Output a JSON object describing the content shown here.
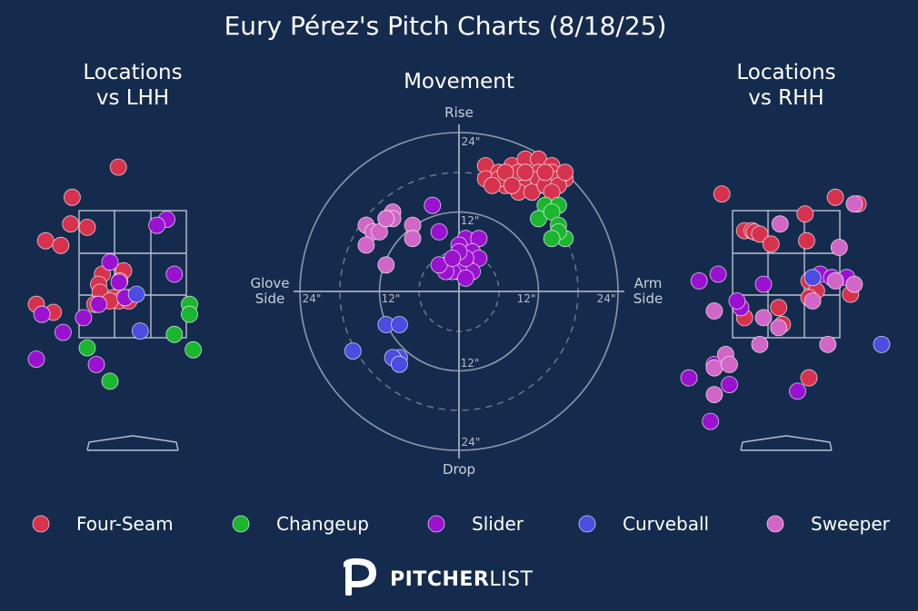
{
  "title": "Eury Pérez's Pitch Charts (8/18/25)",
  "panels": {
    "lhh_title": [
      "Locations",
      "vs LHH"
    ],
    "movement_title": "Movement",
    "rhh_title": [
      "Locations",
      "vs RHH"
    ]
  },
  "movement_axes": {
    "top": "Rise",
    "bottom": "Drop",
    "left": [
      "Glove",
      "Side"
    ],
    "right": [
      "Arm",
      "Side"
    ],
    "ring_labels": [
      "12\"",
      "24\""
    ]
  },
  "legend": [
    {
      "key": "four_seam",
      "label": "Four-Seam",
      "color": "#d7324d"
    },
    {
      "key": "changeup",
      "label": "Changeup",
      "color": "#1bb52f"
    },
    {
      "key": "slider",
      "label": "Slider",
      "color": "#9a12cf"
    },
    {
      "key": "curveball",
      "label": "Curveball",
      "color": "#4a4de0"
    },
    {
      "key": "sweeper",
      "label": "Sweeper",
      "color": "#d266c6"
    }
  ],
  "brand": {
    "bold": "PITCHER",
    "light": "LIST"
  },
  "chart_data": [
    {
      "type": "scatter",
      "panel": "Locations vs LHH",
      "title": "Locations vs LHH",
      "series": [
        {
          "name": "Four-Seam",
          "points": [
            [
              -0.19,
              4.15
            ],
            [
              -0.8,
              3.7
            ],
            [
              -0.82,
              3.3
            ],
            [
              -0.6,
              3.25
            ],
            [
              -1.15,
              3.05
            ],
            [
              -0.95,
              2.98
            ],
            [
              -0.4,
              2.55
            ],
            [
              -0.12,
              2.6
            ],
            [
              -0.17,
              2.45
            ],
            [
              -0.45,
              2.4
            ],
            [
              -0.43,
              2.28
            ],
            [
              -0.25,
              2.2
            ],
            [
              -0.18,
              2.15
            ],
            [
              -0.05,
              2.2
            ],
            [
              -1.3,
              2.1
            ],
            [
              -1.05,
              1.98
            ],
            [
              -0.5,
              2.1
            ],
            [
              -0.3,
              2.15
            ],
            [
              -0.05,
              2.15
            ]
          ]
        },
        {
          "name": "Changeup",
          "points": [
            [
              0.75,
              2.1
            ],
            [
              0.75,
              1.95
            ],
            [
              0.55,
              1.65
            ],
            [
              0.8,
              1.42
            ],
            [
              -0.6,
              1.45
            ],
            [
              -0.3,
              0.95
            ]
          ]
        },
        {
          "name": "Slider",
          "points": [
            [
              0.45,
              3.37
            ],
            [
              0.32,
              3.28
            ],
            [
              -0.3,
              2.73
            ],
            [
              0.55,
              2.55
            ],
            [
              -0.18,
              2.43
            ],
            [
              -0.45,
              2.1
            ],
            [
              -1.2,
              1.95
            ],
            [
              -0.65,
              1.9
            ],
            [
              -0.92,
              1.68
            ],
            [
              -1.65,
              1.28
            ],
            [
              -0.48,
              1.2
            ],
            [
              -0.1,
              2.2
            ]
          ]
        },
        {
          "name": "Curveball",
          "points": [
            [
              0.05,
              2.25
            ],
            [
              0.1,
              1.7
            ]
          ]
        },
        {
          "name": "Sweeper",
          "points": []
        }
      ]
    },
    {
      "type": "scatter",
      "panel": "Movement",
      "title": "Movement",
      "axes": {
        "top": "Rise",
        "bottom": "Drop",
        "left": "Glove Side",
        "right": "Arm Side"
      },
      "ring_values_in": [
        12,
        24
      ],
      "series": [
        {
          "name": "Four-Seam",
          "points": [
            [
              4,
              19
            ],
            [
              8,
              19
            ],
            [
              10,
              20
            ],
            [
              12,
              20
            ],
            [
              14,
              19
            ],
            [
              6,
              18
            ],
            [
              8,
              17
            ],
            [
              11,
              17
            ],
            [
              12,
              18
            ],
            [
              14,
              18
            ],
            [
              10,
              16
            ],
            [
              12,
              16
            ],
            [
              14,
              16
            ],
            [
              16,
              17
            ],
            [
              7,
              16
            ],
            [
              4,
              17
            ],
            [
              9,
              18
            ],
            [
              12,
              17
            ],
            [
              15,
              17
            ],
            [
              6,
              17
            ],
            [
              9,
              15
            ],
            [
              11,
              15
            ],
            [
              13,
              16
            ],
            [
              15,
              16
            ],
            [
              7,
              18
            ],
            [
              10,
              18
            ],
            [
              13,
              18
            ],
            [
              16,
              18
            ],
            [
              8,
              16
            ],
            [
              14,
              15
            ],
            [
              5,
              16
            ]
          ]
        },
        {
          "name": "Changeup",
          "points": [
            [
              13,
              13
            ],
            [
              15,
              13
            ],
            [
              12,
              11
            ],
            [
              14,
              12
            ],
            [
              15,
              10
            ],
            [
              16,
              8
            ],
            [
              15,
              9
            ],
            [
              14,
              8
            ]
          ]
        },
        {
          "name": "Slider",
          "points": [
            [
              -4,
              13
            ],
            [
              -3,
              9
            ],
            [
              1,
              8
            ],
            [
              3,
              8
            ],
            [
              0,
              7
            ],
            [
              2,
              6
            ],
            [
              3,
              5
            ],
            [
              0,
              5
            ],
            [
              -1,
              4
            ],
            [
              1,
              4
            ],
            [
              2,
              3
            ],
            [
              -2,
              4
            ],
            [
              0,
              3
            ],
            [
              -1,
              3
            ],
            [
              1,
              2
            ],
            [
              -2,
              3
            ],
            [
              -3,
              4
            ],
            [
              1,
              5
            ],
            [
              0,
              6
            ],
            [
              -1,
              5
            ]
          ]
        },
        {
          "name": "Curveball",
          "points": [
            [
              -11,
              -5
            ],
            [
              -9,
              -5
            ],
            [
              -16,
              -9
            ],
            [
              -9,
              -10
            ],
            [
              -10,
              -10
            ],
            [
              -9,
              -11
            ]
          ]
        },
        {
          "name": "Sweeper",
          "points": [
            [
              -10,
              12
            ],
            [
              -11,
              11
            ],
            [
              -7,
              10
            ],
            [
              -7,
              8
            ],
            [
              -10,
              11
            ],
            [
              -14,
              10
            ],
            [
              -13,
              9
            ],
            [
              -12,
              9
            ],
            [
              -14,
              7
            ],
            [
              -11,
              11
            ],
            [
              -11,
              4
            ]
          ]
        }
      ]
    },
    {
      "type": "scatter",
      "panel": "Locations vs RHH",
      "title": "Locations vs RHH",
      "series": [
        {
          "name": "Four-Seam",
          "points": [
            [
              -0.85,
              3.75
            ],
            [
              0.65,
              3.7
            ],
            [
              0.95,
              3.6
            ],
            [
              0.25,
              3.45
            ],
            [
              -0.55,
              3.2
            ],
            [
              -0.45,
              3.2
            ],
            [
              -0.42,
              3.18
            ],
            [
              -0.35,
              3.15
            ],
            [
              0.27,
              3.05
            ],
            [
              -0.2,
              3.0
            ],
            [
              0.3,
              2.45
            ],
            [
              0.4,
              2.3
            ],
            [
              0.3,
              2.2
            ],
            [
              -0.1,
              2.05
            ],
            [
              0.85,
              2.25
            ],
            [
              -0.55,
              1.9
            ],
            [
              -0.05,
              1.8
            ],
            [
              0.3,
              1.0
            ]
          ]
        },
        {
          "name": "Changeup",
          "points": []
        },
        {
          "name": "Slider",
          "points": [
            [
              -1.15,
              2.45
            ],
            [
              -0.9,
              2.55
            ],
            [
              -0.3,
              2.4
            ],
            [
              0.45,
              2.55
            ],
            [
              0.6,
              2.5
            ],
            [
              0.8,
              2.5
            ],
            [
              -0.6,
              2.05
            ],
            [
              -0.65,
              2.15
            ],
            [
              -0.95,
              1.2
            ],
            [
              -1.5,
              1.0
            ],
            [
              -0.75,
              0.9
            ],
            [
              0.15,
              0.8
            ],
            [
              -1.0,
              0.35
            ]
          ]
        },
        {
          "name": "Curveball",
          "points": [
            [
              0.35,
              2.5
            ],
            [
              1.45,
              1.5
            ]
          ]
        },
        {
          "name": "Sweeper",
          "points": [
            [
              0.9,
              3.6
            ],
            [
              -0.08,
              3.3
            ],
            [
              0.7,
              2.95
            ],
            [
              0.35,
              2.15
            ],
            [
              0.65,
              2.45
            ],
            [
              0.9,
              2.4
            ],
            [
              -0.95,
              2.0
            ],
            [
              -0.3,
              1.9
            ],
            [
              -0.1,
              1.75
            ],
            [
              -0.35,
              1.5
            ],
            [
              0.55,
              1.5
            ],
            [
              -0.8,
              1.35
            ],
            [
              -0.95,
              1.15
            ],
            [
              -0.75,
              1.2
            ],
            [
              -0.95,
              0.75
            ]
          ]
        }
      ]
    }
  ]
}
